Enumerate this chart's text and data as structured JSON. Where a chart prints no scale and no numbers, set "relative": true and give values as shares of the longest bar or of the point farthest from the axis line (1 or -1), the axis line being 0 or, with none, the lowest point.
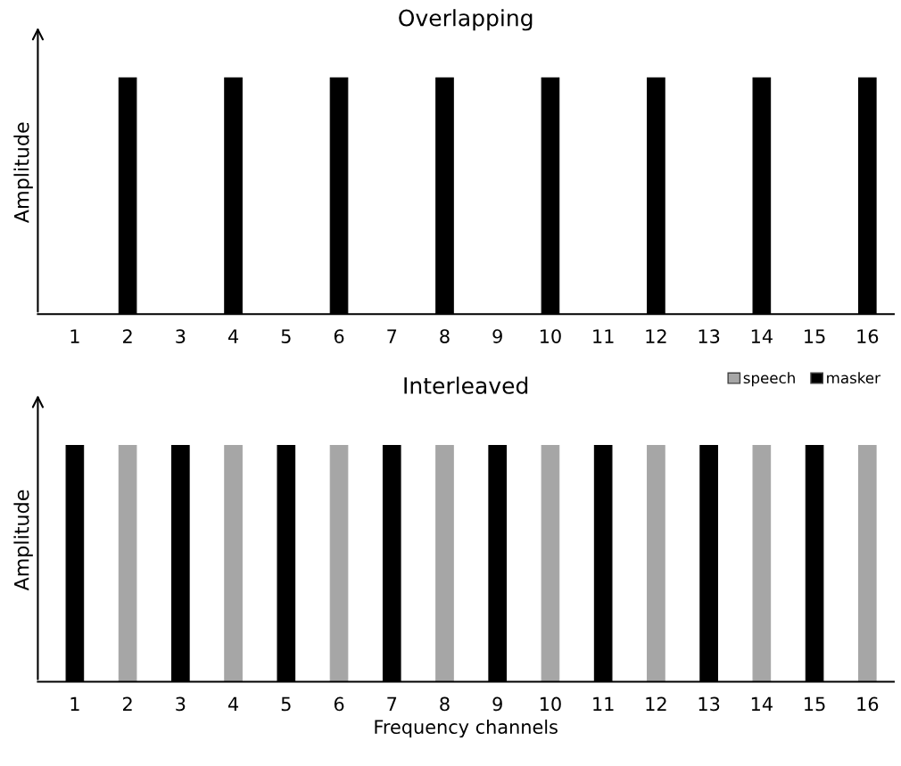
{
  "chart_data": [
    {
      "type": "bar",
      "title": "Overlapping",
      "ylabel": "Amplitude",
      "relative": true,
      "legend": false,
      "categories": [
        "1",
        "2",
        "3",
        "4",
        "5",
        "6",
        "7",
        "8",
        "9",
        "10",
        "11",
        "12",
        "13",
        "14",
        "15",
        "16"
      ],
      "series": [
        {
          "color": "#000000",
          "values": [
            null,
            1,
            null,
            1,
            null,
            1,
            null,
            1,
            null,
            1,
            null,
            1,
            null,
            1,
            null,
            1
          ]
        }
      ]
    },
    {
      "type": "bar",
      "title": "Interleaved",
      "ylabel": "Amplitude",
      "xlabel": "Frequency channels",
      "relative": true,
      "legend": "top right",
      "categories": [
        "1",
        "2",
        "3",
        "4",
        "5",
        "6",
        "7",
        "8",
        "9",
        "10",
        "11",
        "12",
        "13",
        "14",
        "15",
        "16"
      ],
      "series": [
        {
          "name": "speech",
          "color": "#a6a6a6",
          "values": [
            null,
            1,
            null,
            1,
            null,
            1,
            null,
            1,
            null,
            1,
            null,
            1,
            null,
            1,
            null,
            1
          ]
        },
        {
          "name": "masker",
          "color": "#000000",
          "values": [
            1,
            null,
            1,
            null,
            1,
            null,
            1,
            null,
            1,
            null,
            1,
            null,
            1,
            null,
            1,
            null
          ]
        }
      ]
    }
  ]
}
